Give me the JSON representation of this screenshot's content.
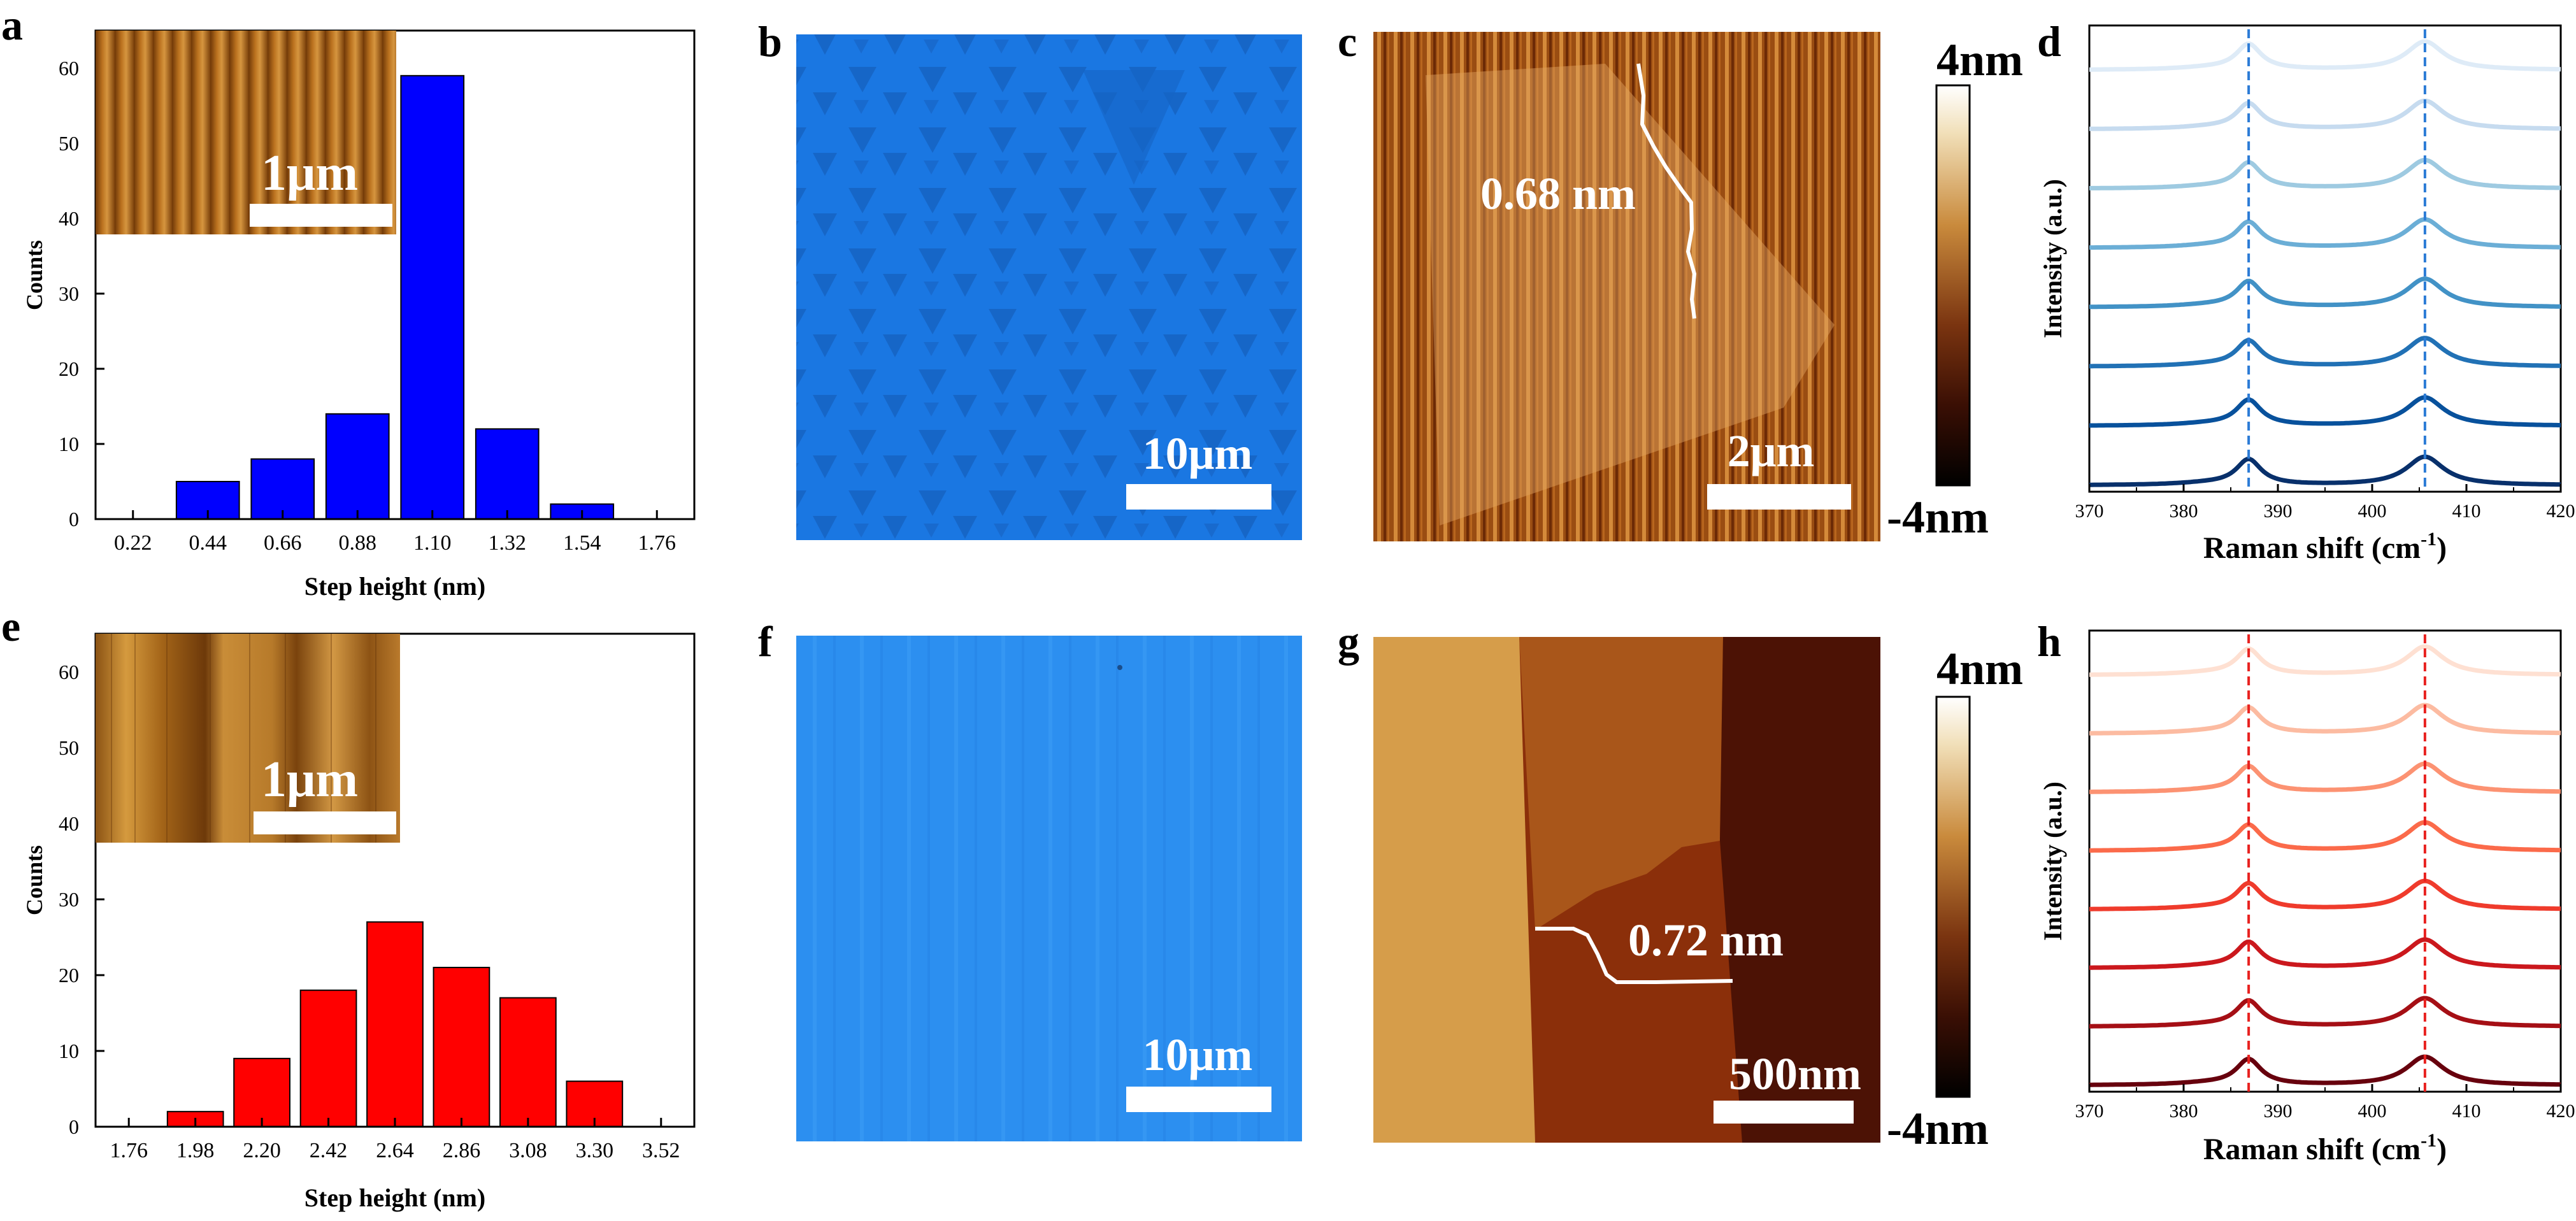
{
  "panel_letters": [
    "a",
    "b",
    "c",
    "d",
    "e",
    "f",
    "g",
    "h"
  ],
  "histograms": {
    "a": {
      "ylabel": "Counts",
      "xlabel": "Step height (nm)",
      "yticks": [
        "0",
        "10",
        "20",
        "30",
        "40",
        "50",
        "60"
      ],
      "inset_scale_label": "1μm"
    },
    "e": {
      "ylabel": "Counts",
      "xlabel": "Step height (nm)",
      "yticks": [
        "0",
        "10",
        "20",
        "30",
        "40",
        "50",
        "60"
      ],
      "inset_scale_label": "1μm"
    }
  },
  "optical": {
    "b": {
      "scale_label": "10μm"
    },
    "f": {
      "scale_label": "10μm"
    }
  },
  "afm": {
    "c": {
      "step_label": "0.68 nm",
      "scale_label": "2μm",
      "cbar_top": "4nm",
      "cbar_bottom": "-4nm"
    },
    "g": {
      "step_label": "0.72 nm",
      "scale_label": "500nm",
      "cbar_top": "4nm",
      "cbar_bottom": "-4nm"
    }
  },
  "raman": {
    "d": {
      "ylabel": "Intensity (a.u.)",
      "xlabel_main": "Raman shift (cm",
      "xlabel_sup": "-1",
      "xlabel_end": ")",
      "xticks": [
        "370",
        "380",
        "390",
        "400",
        "410",
        "420"
      ]
    },
    "h": {
      "ylabel": "Intensity (a.u.)",
      "xlabel_main": "Raman shift (cm",
      "xlabel_sup": "-1",
      "xlabel_end": ")",
      "xticks": [
        "370",
        "380",
        "390",
        "400",
        "410",
        "420"
      ]
    }
  },
  "chart_data": [
    {
      "panel": "a",
      "type": "bar",
      "xlabel": "Step height (nm)",
      "ylabel": "Counts",
      "categories": [
        "0.22",
        "0.44",
        "0.66",
        "0.88",
        "1.10",
        "1.32",
        "1.54",
        "1.76"
      ],
      "values": [
        0,
        5,
        8,
        14,
        59,
        12,
        2,
        0
      ],
      "ylim": [
        0,
        65
      ],
      "bar_color": "#0000ff"
    },
    {
      "panel": "e",
      "type": "bar",
      "xlabel": "Step height (nm)",
      "ylabel": "Counts",
      "categories": [
        "1.76",
        "1.98",
        "2.20",
        "2.42",
        "2.64",
        "2.86",
        "3.08",
        "3.30",
        "3.52"
      ],
      "values": [
        0,
        2,
        9,
        18,
        27,
        21,
        17,
        6,
        0
      ],
      "ylim": [
        0,
        65
      ],
      "bar_color": "#ff0000"
    },
    {
      "panel": "d",
      "type": "line",
      "xlabel": "Raman shift (cm-1)",
      "ylabel": "Intensity (a.u.)",
      "xlim": [
        370,
        420
      ],
      "peaks": [
        386.9,
        405.6
      ],
      "reference_lines": [
        386.9,
        405.6
      ],
      "spectra_count": 8,
      "colors": [
        "#08306b",
        "#08519c",
        "#2171b5",
        "#4292c6",
        "#6baed6",
        "#9ecae1",
        "#c6dbef",
        "#deebf7"
      ],
      "reference_line_color": "#2b7bd6"
    },
    {
      "panel": "h",
      "type": "line",
      "xlabel": "Raman shift (cm-1)",
      "ylabel": "Intensity (a.u.)",
      "xlim": [
        370,
        420
      ],
      "peaks": [
        386.9,
        405.6
      ],
      "reference_lines": [
        386.9,
        405.6
      ],
      "spectra_count": 8,
      "colors": [
        "#67000d",
        "#a50f15",
        "#cb181d",
        "#ef3b2c",
        "#fb6a4a",
        "#fc9272",
        "#fcbba1",
        "#fee0d2"
      ],
      "reference_line_color": "#e8211f"
    }
  ]
}
